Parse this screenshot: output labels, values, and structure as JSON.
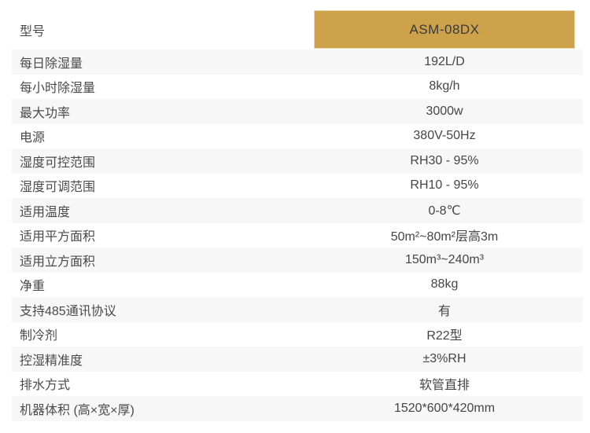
{
  "table": {
    "header": {
      "label": "型号",
      "value": "ASM-08DX"
    },
    "rows": [
      {
        "label": "每日除湿量",
        "value": "192L/D"
      },
      {
        "label": "每小时除湿量",
        "value": "8kg/h"
      },
      {
        "label": "最大功率",
        "value": "3000w"
      },
      {
        "label": "电源",
        "value": "380V-50Hz"
      },
      {
        "label": "湿度可控范围",
        "value": "RH30 - 95%"
      },
      {
        "label": "湿度可调范围",
        "value": "RH10 - 95%"
      },
      {
        "label": "适用温度",
        "value": "0-8℃"
      },
      {
        "label": "适用平方面积",
        "value": "50m²~80m²层高3m"
      },
      {
        "label": "适用立方面积",
        "value": "150m³~240m³"
      },
      {
        "label": "净重",
        "value": "88kg"
      },
      {
        "label": "支持485通讯协议",
        "value": "有"
      },
      {
        "label": "制冷剂",
        "value": "R22型"
      },
      {
        "label": "控湿精准度",
        "value": "±3%RH"
      },
      {
        "label": "排水方式",
        "value": "软管直排"
      },
      {
        "label": "机器体积 (高×宽×厚)",
        "value": "1520*600*420mm"
      }
    ]
  },
  "colors": {
    "accent_gold": "#cda24b",
    "gold_border": "#e8d6ae",
    "stripe": "#f7f7f7",
    "text": "#4a4a4a"
  }
}
